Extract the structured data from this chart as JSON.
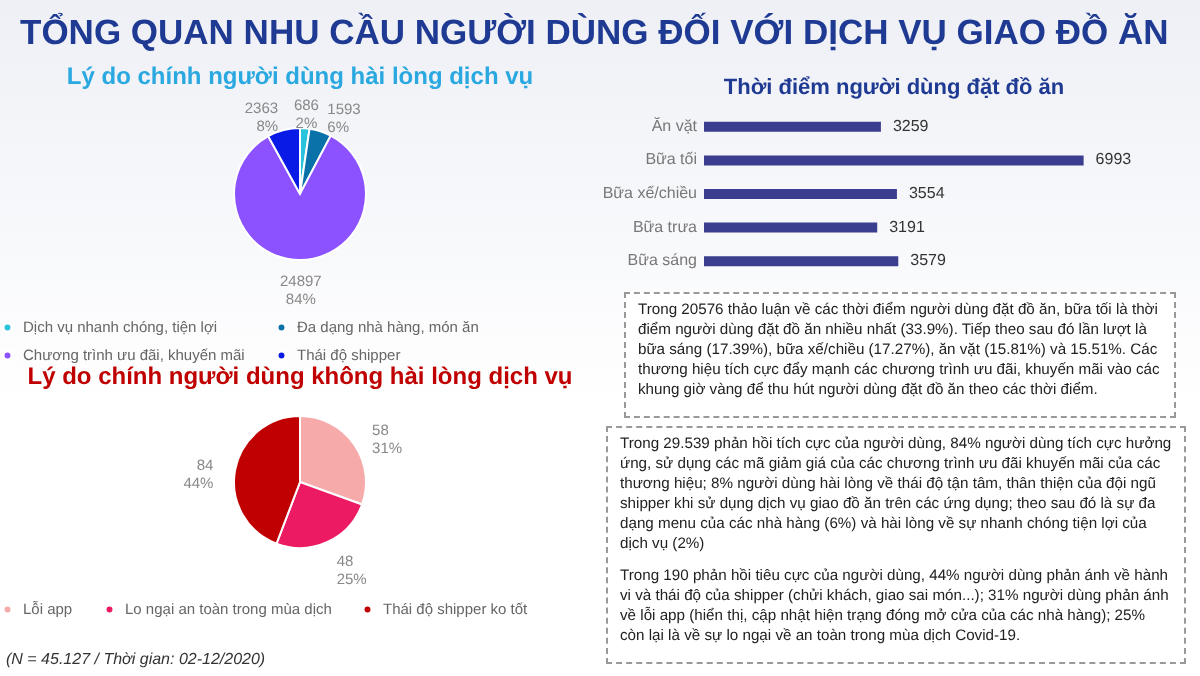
{
  "chart_data": [
    {
      "type": "other",
      "title": "TỔNG QUAN NHU CẦU NGƯỜI DÙNG ĐỐI VỚI DỊCH VỤ GIAO ĐỒ ĂN",
      "annotations": [
        "(N = 45.127 / Thời gian: 02-12/2020)"
      ]
    },
    {
      "type": "pie",
      "title": "Lý do chính người dùng hài lòng dịch vụ",
      "categories": [
        "Dịch vụ nhanh chóng, tiện lợi",
        "Đa dạng nhà hàng, món ăn",
        "Chương trình ưu đãi, khuyến mãi",
        "Thái độ shipper"
      ],
      "values": [
        686,
        1593,
        24897,
        2363
      ],
      "colors": [
        "#27c4dc",
        "#0a72a8",
        "#8c52ff",
        "#0a1ae6"
      ],
      "value_labels": [
        "686\n2%",
        "1593\n6%",
        "24897\n84%",
        "2363\n8%"
      ],
      "legend": "bottom"
    },
    {
      "type": "pie",
      "title": "Lý do chính người dùng không hài lòng dịch vụ",
      "categories": [
        "Lỗi app",
        "Lo ngại an toàn trong mùa dịch",
        "Thái độ shipper ko tốt"
      ],
      "values": [
        58,
        48,
        84
      ],
      "colors": [
        "#f6aaa9",
        "#ec1a62",
        "#c00000"
      ],
      "value_labels": [
        "58\n31%",
        "48\n25%",
        "84\n44%"
      ],
      "legend": "bottom"
    },
    {
      "type": "bar",
      "orientation": "horizontal",
      "title": "Thời điểm người dùng đặt đồ ăn",
      "categories": [
        "Ăn vặt",
        "Bữa tối",
        "Bữa xế/chiều",
        "Bữa trưa",
        "Bữa sáng"
      ],
      "values": [
        3259,
        6993,
        3554,
        3191,
        3579
      ],
      "color": "#3b3d8e",
      "data_labels": true
    },
    {
      "type": "other",
      "annotations": [
        "Trong 20576 thảo luận về các thời điểm người dùng đặt đồ ăn, bữa tối là thời điểm người dùng đặt đồ ăn nhiều nhất (33.9%). Tiếp theo sau đó lần lượt là bữa sáng (17.39%), bữa xế/chiều (17.27%), ăn vặt (15.81%) và 15.51%. Các thương hiệu tích cực đẩy mạnh các chương trình ưu đãi, khuyến mãi vào các khung giờ vàng để thu hút người dùng đặt đồ ăn theo các thời điểm.",
        "Trong 29.539 phản hồi tích cực của người dùng, 84% người dùng tích cực hưởng ứng, sử dụng các mã giảm giá của các chương trình ưu đãi khuyến mãi của các thương hiệu; 8% người dùng hài lòng về thái độ tận tâm, thân thiện của đội ngũ shipper khi sử dụng dịch vụ giao đồ ăn trên các ứng dụng; theo sau đó là sự đa dạng menu của các nhà hàng (6%) và hài lòng về sự nhanh chóng tiện lợi của dịch vụ (2%)",
        "Trong 190 phản hồi tiêu cực của người dùng, 44% người dùng phản ánh về hành vi và thái độ của shipper (chửi khách, giao sai món...); 31% người dùng phản ánh về lỗi app (hiển thị, cập nhật hiện trạng đóng mở cửa của các nhà hàng); 25% còn lại là về sự lo ngại về an toàn trong mùa dịch Covid-19."
      ]
    }
  ]
}
